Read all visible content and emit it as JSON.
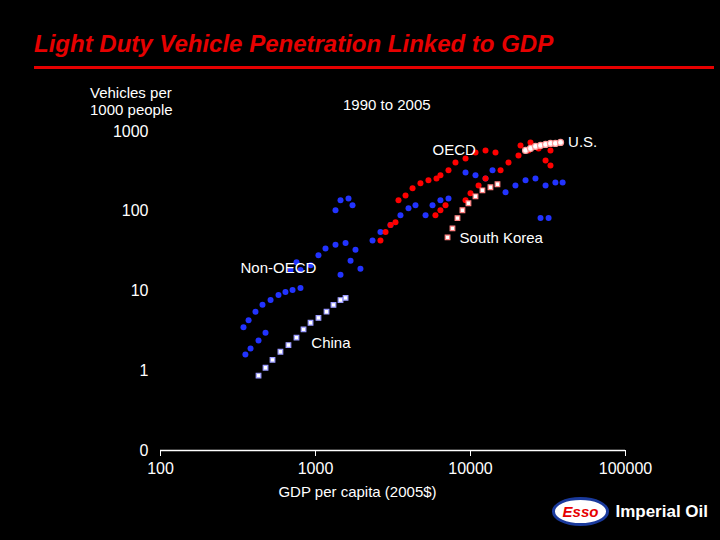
{
  "chart_data": {
    "type": "scatter",
    "title": "Light Duty Vehicle Penetration Linked to GDP",
    "subtitle": "1990 to 2005",
    "y_label": "Vehicles per\n1000 people",
    "x_label": "GDP per capita (2005$)",
    "log": true,
    "grid": false,
    "xlim": [
      100,
      100000
    ],
    "xticks": [
      100,
      1000,
      10000,
      100000
    ],
    "ylim": [
      0.1,
      1000
    ],
    "yticks": [
      {
        "value": 0.1,
        "label": "0"
      },
      1,
      10,
      100,
      1000
    ],
    "logo": {
      "esso": "Esso",
      "company": "Imperial Oil"
    },
    "series": [
      {
        "name": "Non-OECD",
        "color": "#2233ff",
        "marker": "circle",
        "label_x": 328,
        "label_y": 19.5,
        "x": [
          343,
          370,
          410,
          455,
          513,
          577,
          640,
          711,
          800,
          353,
          381,
          429,
          476,
          690,
          754,
          800,
          929,
          1045,
          1160,
          1346,
          1563,
          1811,
          1683,
          1450,
          1950,
          1346,
          1450,
          1633,
          1733,
          2333,
          2625,
          3048,
          3533,
          3981,
          4416,
          5129,
          5688,
          6397,
          7211,
          9290,
          10770,
          12500,
          13870,
          16830,
          19500,
          22650,
          26250,
          30500,
          35300,
          39300,
          28300,
          31900
        ],
        "y": [
          3.5,
          4.3,
          5.5,
          6.7,
          7.7,
          8.9,
          9.7,
          10.3,
          10.9,
          1.6,
          1.9,
          2.4,
          3.0,
          18.3,
          23,
          18.3,
          21,
          28,
          34,
          38,
          40,
          33,
          24,
          16,
          19,
          103,
          137,
          145,
          119,
          43,
          55,
          67,
          89,
          109,
          119,
          89,
          119,
          137,
          145,
          307,
          282,
          258,
          326,
          173,
          211,
          244,
          258,
          211,
          230,
          230,
          82,
          82
        ]
      },
      {
        "name": "China",
        "color": "#9999ff",
        "marker": "open_square",
        "label_x": 940,
        "label_y": 2.2,
        "x": [
          429,
          476,
          528,
          594,
          669,
          754,
          837,
          929,
          1045,
          1178,
          1306,
          1450,
          1563
        ],
        "y": [
          0.87,
          1.09,
          1.37,
          1.73,
          2.1,
          2.6,
          3.3,
          4.0,
          4.6,
          5.5,
          6.7,
          7.7,
          8.2
        ]
      },
      {
        "name": "OECD",
        "color": "#ff0000",
        "marker": "circle",
        "label_x": 5690,
        "label_y": 575,
        "x": [
          2625,
          2831,
          3048,
          3281,
          3431,
          3810,
          4227,
          4754,
          5355,
          6034,
          6397,
          5940,
          6397,
          6900,
          7211,
          8000,
          9290,
          10770,
          12500,
          14500,
          9290,
          10000,
          11270,
          12500,
          15630,
          17590,
          20400,
          23660,
          27480,
          30500,
          32810,
          21030,
          24380,
          28300,
          32810
        ],
        "y": [
          43,
          55,
          67,
          73,
          137,
          158,
          194,
          224,
          244,
          258,
          282,
          89,
          103,
          119,
          326,
          410,
          460,
          546,
          579,
          546,
          137,
          168,
          211,
          258,
          326,
          410,
          501,
          579,
          613,
          434,
          376,
          668,
          729,
          668,
          579
        ]
      },
      {
        "name": "South Korea",
        "color": "#ff8080",
        "marker": "open_square",
        "label_x": 8500,
        "label_y": 46,
        "x": [
          7110,
          7650,
          8240,
          8870,
          9700,
          10770,
          11940,
          13450,
          14930
        ],
        "y": [
          47,
          61,
          82,
          103,
          126,
          154,
          183,
          200,
          218
        ]
      },
      {
        "name": "U.S.",
        "color": "#ff9999",
        "marker": "open_circle",
        "label_x": 42600,
        "label_y": 727,
        "x": [
          22650,
          24380,
          26250,
          28300,
          30500,
          32810,
          35300,
          38100
        ],
        "y": [
          579,
          613,
          649,
          668,
          688,
          708,
          708,
          729
        ]
      }
    ]
  }
}
